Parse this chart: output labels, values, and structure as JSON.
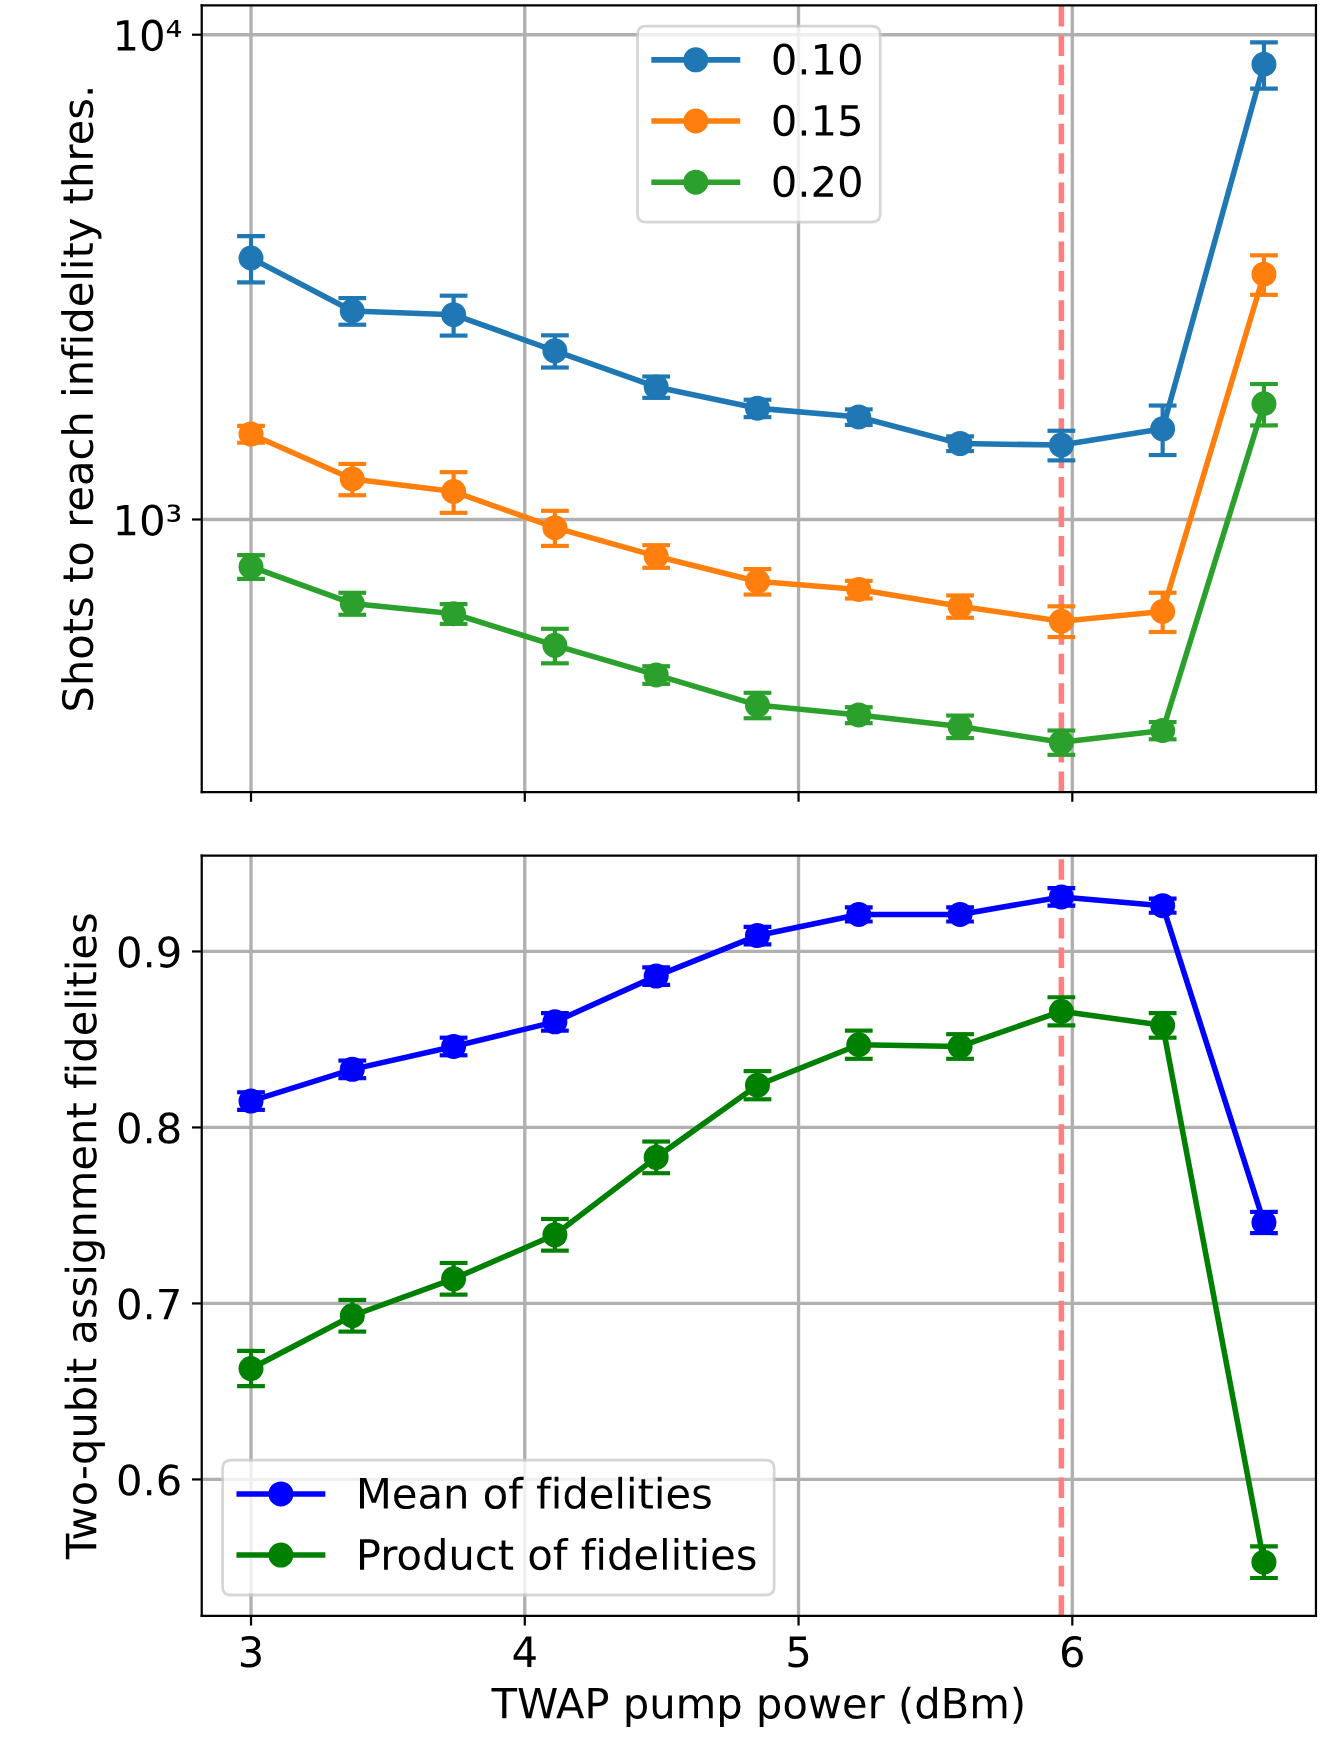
{
  "chart_data": [
    {
      "type": "line",
      "ylabel": "Shots to reach infidelity thres.",
      "log": "y",
      "grid": true,
      "legend": "top",
      "marker": "circle",
      "line_style": "solid",
      "tick_labels": "y",
      "x": [
        3.0,
        3.37,
        3.74,
        4.11,
        4.48,
        4.85,
        5.22,
        5.59,
        5.96,
        6.33,
        6.7
      ],
      "xlim": [
        2.82,
        6.89
      ],
      "xticks": [
        3,
        4,
        5,
        6
      ],
      "ylim": [
        274,
        11500
      ],
      "yticks": [
        {
          "value": 1000,
          "label": "10³"
        },
        {
          "value": 10000,
          "label": "10⁴"
        }
      ],
      "ref_lines": [
        {
          "axis": "x",
          "value": 5.96,
          "color": "#ff7f7f",
          "line_style": "dashed"
        }
      ],
      "series": [
        {
          "name": "0.10",
          "color": "#1f77b4",
          "values": [
            3463,
            2692,
            2645,
            2228,
            1877,
            1696,
            1627,
            1434,
            1424,
            1538,
            8690
          ],
          "errors": [
            380,
            170,
            250,
            170,
            95,
            70,
            60,
            50,
            100,
            180,
            950
          ]
        },
        {
          "name": "0.15",
          "color": "#ff7f0e",
          "values": [
            1500,
            1212,
            1142,
            962,
            840,
            745,
            717,
            662,
            617,
            646,
            3207
          ],
          "errors": [
            60,
            90,
            110,
            80,
            45,
            45,
            30,
            35,
            45,
            60,
            300
          ]
        },
        {
          "name": "0.20",
          "color": "#2ca02c",
          "values": [
            799,
            671,
            639,
            550,
            478,
            414,
            395,
            374,
            347,
            367,
            1733
          ],
          "errors": [
            45,
            35,
            30,
            45,
            20,
            25,
            15,
            20,
            20,
            15,
            170
          ]
        }
      ]
    },
    {
      "type": "line",
      "xlabel": "TWAP pump power (dBm)",
      "ylabel": "Two-qubit assignment fidelities",
      "grid": true,
      "legend": "bottom left",
      "marker": "circle",
      "line_style": "solid",
      "x": [
        3.0,
        3.37,
        3.74,
        4.11,
        4.48,
        4.85,
        5.22,
        5.59,
        5.96,
        6.33,
        6.7
      ],
      "xlim": [
        2.82,
        6.89
      ],
      "xticks": [
        3,
        4,
        5,
        6
      ],
      "ylim": [
        0.5225,
        0.9545
      ],
      "yticks": [
        0.6,
        0.7,
        0.8,
        0.9
      ],
      "ref_lines": [
        {
          "axis": "x",
          "value": 5.96,
          "color": "#ff7f7f",
          "line_style": "dashed"
        }
      ],
      "series": [
        {
          "name": "Mean of fidelities",
          "color": "#0000ff",
          "values": [
            0.815,
            0.833,
            0.846,
            0.86,
            0.886,
            0.909,
            0.921,
            0.921,
            0.931,
            0.926,
            0.746
          ],
          "errors": [
            0.005,
            0.005,
            0.005,
            0.005,
            0.005,
            0.005,
            0.004,
            0.004,
            0.005,
            0.004,
            0.006
          ]
        },
        {
          "name": "Product of fidelities",
          "color": "#008000",
          "values": [
            0.663,
            0.693,
            0.714,
            0.739,
            0.783,
            0.824,
            0.847,
            0.846,
            0.866,
            0.858,
            0.553
          ],
          "errors": [
            0.01,
            0.009,
            0.009,
            0.009,
            0.009,
            0.008,
            0.008,
            0.007,
            0.008,
            0.007,
            0.009
          ]
        }
      ]
    }
  ]
}
